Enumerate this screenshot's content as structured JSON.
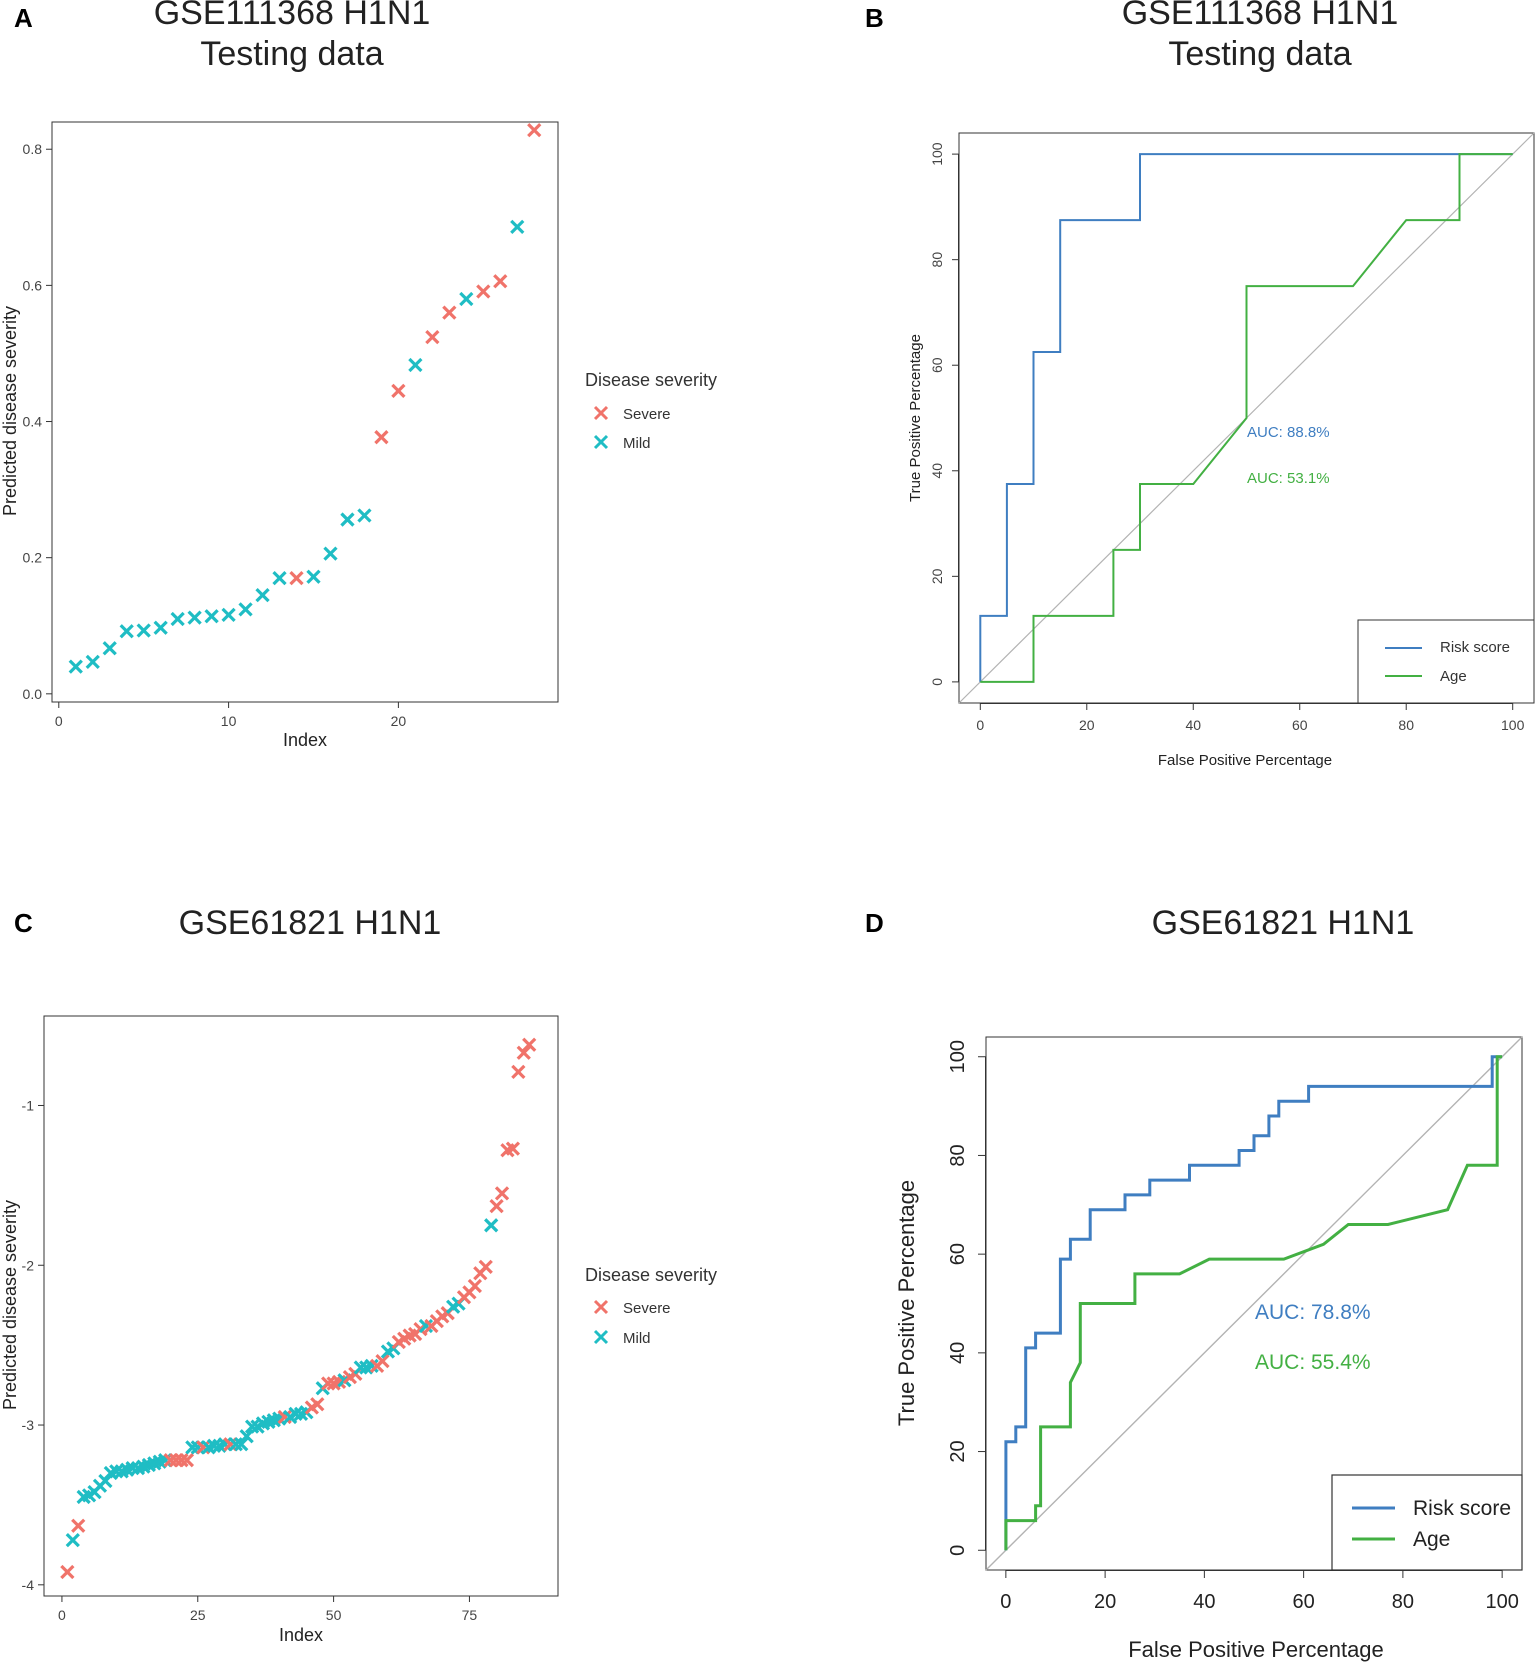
{
  "colors": {
    "severe": "#F0736A",
    "mild": "#1FBDC4",
    "risk_line": "#3F7EC1",
    "age_line": "#43B043",
    "diagonal": "#B3B3B3"
  },
  "panels": {
    "A": {
      "letter": "A"
    },
    "B": {
      "letter": "B"
    },
    "C": {
      "letter": "C"
    },
    "D": {
      "letter": "D"
    }
  },
  "chart_data": [
    {
      "id": "A",
      "type": "scatter",
      "title": "GSE111368 H1N1",
      "subtitle": "Testing data",
      "xlabel": "Index",
      "ylabel": "Predicted disease severity",
      "xlim": [
        -0.4,
        29.4
      ],
      "ylim": [
        -0.012,
        0.84
      ],
      "xticks": [
        0,
        10,
        20
      ],
      "yticks": [
        0.0,
        0.2,
        0.4,
        0.6,
        0.8
      ],
      "ytick_labels": [
        "0.0",
        "0.2",
        "0.4",
        "0.6",
        "0.8"
      ],
      "legend": {
        "title": "Disease severity",
        "items": [
          "Severe",
          "Mild"
        ]
      },
      "groups": [
        "Mild",
        "Mild",
        "Mild",
        "Mild",
        "Mild",
        "Mild",
        "Mild",
        "Mild",
        "Mild",
        "Mild",
        "Mild",
        "Mild",
        "Mild",
        "Severe",
        "Mild",
        "Mild",
        "Mild",
        "Mild",
        "Severe",
        "Severe",
        "Mild",
        "Severe",
        "Severe",
        "Mild",
        "Severe",
        "Severe",
        "Mild",
        "Severe"
      ],
      "values": [
        0.04,
        0.047,
        0.067,
        0.092,
        0.093,
        0.097,
        0.11,
        0.112,
        0.114,
        0.116,
        0.124,
        0.145,
        0.17,
        0.17,
        0.172,
        0.206,
        0.256,
        0.262,
        0.377,
        0.445,
        0.483,
        0.524,
        0.56,
        0.58,
        0.591,
        0.606,
        0.686,
        0.828
      ]
    },
    {
      "id": "B",
      "type": "line",
      "title": "GSE111368 H1N1",
      "subtitle": "Testing data",
      "xlabel": "False Positive Percentage",
      "ylabel": "True Positive Percentage",
      "xlim": [
        -4,
        104
      ],
      "ylim": [
        -4,
        104
      ],
      "xticks": [
        0,
        20,
        40,
        60,
        80,
        100
      ],
      "yticks": [
        0,
        20,
        40,
        60,
        80,
        100
      ],
      "series": [
        {
          "name": "Risk score",
          "auc_label": "AUC: 88.8%",
          "x": [
            0,
            0,
            5,
            5,
            10,
            10,
            15,
            15,
            30,
            30,
            100
          ],
          "y": [
            0,
            12.5,
            12.5,
            37.5,
            37.5,
            62.5,
            62.5,
            87.5,
            87.5,
            100,
            100
          ]
        },
        {
          "name": "Age",
          "auc_label": "AUC: 53.1%",
          "x": [
            0,
            10,
            10,
            25,
            25,
            30,
            30,
            40,
            50,
            50,
            70,
            80,
            90,
            90,
            100
          ],
          "y": [
            0,
            0,
            12.5,
            12.5,
            25,
            25,
            37.5,
            37.5,
            50,
            75,
            75,
            87.5,
            87.5,
            100,
            100
          ]
        }
      ]
    },
    {
      "id": "C",
      "type": "scatter",
      "title": "GSE61821 H1N1",
      "xlabel": "Index",
      "ylabel": "Predicted disease severity",
      "xlim": [
        -3.3,
        91.3
      ],
      "ylim": [
        -4.07,
        -0.44
      ],
      "xticks": [
        0,
        25,
        50,
        75
      ],
      "yticks": [
        -4,
        -3,
        -2,
        -1
      ],
      "ytick_labels": [
        "-4",
        "-3",
        "-2",
        "-1"
      ],
      "legend": {
        "title": "Disease severity",
        "items": [
          "Severe",
          "Mild"
        ]
      },
      "groups": [
        "Severe",
        "Mild",
        "Severe",
        "Mild",
        "Mild",
        "Mild",
        "Mild",
        "Mild",
        "Mild",
        "Mild",
        "Mild",
        "Mild",
        "Mild",
        "Mild",
        "Mild",
        "Mild",
        "Mild",
        "Mild",
        "Mild",
        "Severe",
        "Severe",
        "Severe",
        "Severe",
        "Mild",
        "Mild",
        "Severe",
        "Mild",
        "Mild",
        "Mild",
        "Mild",
        "Severe",
        "Mild",
        "Mild",
        "Mild",
        "Mild",
        "Mild",
        "Mild",
        "Mild",
        "Mild",
        "Mild",
        "Severe",
        "Mild",
        "Mild",
        "Mild",
        "Mild",
        "Severe",
        "Severe",
        "Mild",
        "Severe",
        "Severe",
        "Severe",
        "Mild",
        "Severe",
        "Severe",
        "Mild",
        "Mild",
        "Mild",
        "Severe",
        "Severe",
        "Mild",
        "Mild",
        "Severe",
        "Severe",
        "Severe",
        "Severe",
        "Severe",
        "Mild",
        "Severe",
        "Severe",
        "Severe",
        "Severe",
        "Mild",
        "Mild",
        "Severe",
        "Severe",
        "Severe",
        "Severe",
        "Severe",
        "Mild",
        "Severe",
        "Severe",
        "Severe",
        "Severe",
        "Severe",
        "Severe",
        "Severe"
      ],
      "values": [
        -3.92,
        -3.72,
        -3.63,
        -3.45,
        -3.44,
        -3.42,
        -3.38,
        -3.35,
        -3.3,
        -3.29,
        -3.29,
        -3.28,
        -3.27,
        -3.27,
        -3.26,
        -3.25,
        -3.24,
        -3.23,
        -3.22,
        -3.22,
        -3.22,
        -3.22,
        -3.22,
        -3.14,
        -3.14,
        -3.14,
        -3.14,
        -3.13,
        -3.13,
        -3.12,
        -3.12,
        -3.12,
        -3.12,
        -3.07,
        -3.01,
        -3.01,
        -2.99,
        -2.98,
        -2.97,
        -2.96,
        -2.95,
        -2.95,
        -2.93,
        -2.93,
        -2.92,
        -2.89,
        -2.87,
        -2.77,
        -2.74,
        -2.74,
        -2.73,
        -2.72,
        -2.7,
        -2.68,
        -2.64,
        -2.64,
        -2.63,
        -2.63,
        -2.6,
        -2.54,
        -2.52,
        -2.48,
        -2.46,
        -2.44,
        -2.43,
        -2.4,
        -2.38,
        -2.38,
        -2.35,
        -2.32,
        -2.3,
        -2.26,
        -2.24,
        -2.2,
        -2.17,
        -2.13,
        -2.05,
        -2.01,
        -1.75,
        -1.63,
        -1.55,
        -1.28,
        -1.27,
        -0.79,
        -0.67,
        -0.62
      ]
    },
    {
      "id": "D",
      "type": "line",
      "title": "GSE61821 H1N1",
      "xlabel": "False Positive Percentage",
      "ylabel": "True Positive Percentage",
      "xlim": [
        -4,
        104
      ],
      "ylim": [
        -4,
        104
      ],
      "xticks": [
        0,
        20,
        40,
        60,
        80,
        100
      ],
      "yticks": [
        0,
        20,
        40,
        60,
        80,
        100
      ],
      "series": [
        {
          "name": "Risk score",
          "auc_label": "AUC: 78.8%",
          "x": [
            0,
            0,
            2,
            2,
            4,
            4,
            6,
            6,
            11,
            11,
            13,
            13,
            17,
            17,
            24,
            24,
            29,
            29,
            37,
            37,
            47,
            47,
            50,
            50,
            53,
            53,
            55,
            55,
            61,
            61,
            98,
            98,
            100,
            100
          ],
          "y": [
            0,
            22,
            22,
            25,
            25,
            41,
            41,
            44,
            44,
            59,
            59,
            63,
            63,
            69,
            69,
            72,
            72,
            75,
            75,
            78,
            78,
            81,
            81,
            84,
            84,
            88,
            88,
            91,
            91,
            94,
            94,
            100,
            100,
            100
          ]
        },
        {
          "name": "Age",
          "auc_label": "AUC: 55.4%",
          "x": [
            0,
            0,
            6,
            6,
            7,
            7,
            13,
            13,
            15,
            15,
            26,
            26,
            35,
            41,
            56,
            64,
            69,
            77,
            89,
            93,
            99,
            99,
            100
          ],
          "y": [
            0,
            6,
            6,
            9,
            9,
            25,
            25,
            34,
            38,
            50,
            50,
            56,
            56,
            59,
            59,
            62,
            66,
            66,
            69,
            78,
            78,
            100,
            100
          ]
        }
      ]
    }
  ]
}
